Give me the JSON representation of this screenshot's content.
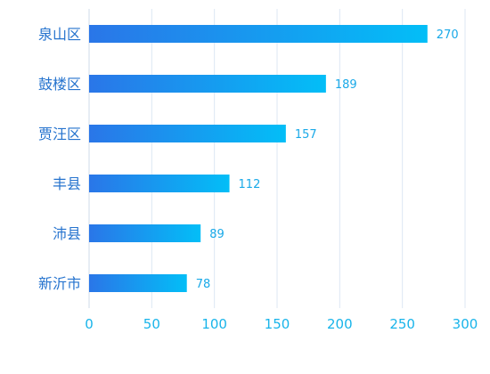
{
  "chart_data": {
    "type": "bar",
    "orientation": "horizontal",
    "categories": [
      "泉山区",
      "鼓楼区",
      "贾汪区",
      "丰县",
      "沛县",
      "新沂市"
    ],
    "values": [
      270,
      189,
      157,
      112,
      89,
      78
    ],
    "xlim": [
      0,
      300
    ],
    "xticks": [
      0,
      50,
      100,
      150,
      200,
      250,
      300
    ],
    "grid": "vertical",
    "data_labels": true,
    "legend": "none"
  },
  "colors": {
    "bar_start": "#2a76e8",
    "bar_end": "#03bef7",
    "category_label": "#2573ce",
    "value_label": "#19a9e8",
    "tick_label": "#18b4ea",
    "grid": "#dce7f3",
    "axis": "#cfdbe9"
  }
}
